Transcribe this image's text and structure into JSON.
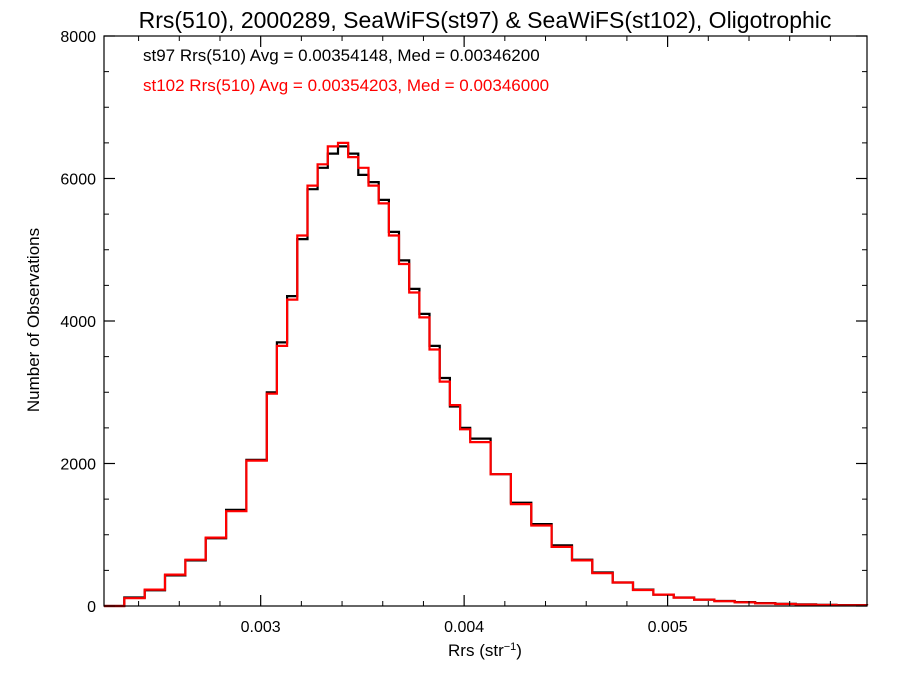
{
  "chart_data": {
    "type": "line",
    "title": "Rrs(510), 2000289, SeaWiFS(st97) & SeaWiFS(st102), Oligotrophic",
    "xlabel": "Rrs (str",
    "xlabel_sup": "−1",
    "xlabel_end": ")",
    "ylabel": "Number of Observations",
    "xlim": [
      0.00223,
      0.00598
    ],
    "ylim": [
      0,
      8000
    ],
    "x_ticks": [
      {
        "value": 0.003,
        "label": "0.003"
      },
      {
        "value": 0.004,
        "label": "0.004"
      },
      {
        "value": 0.005,
        "label": "0.005"
      }
    ],
    "y_ticks": [
      {
        "value": 0,
        "label": "0"
      },
      {
        "value": 2000,
        "label": "2000"
      },
      {
        "value": 4000,
        "label": "4000"
      },
      {
        "value": 6000,
        "label": "6000"
      },
      {
        "value": 8000,
        "label": "8000"
      }
    ],
    "annotations": [
      {
        "text": "st97 Rrs(510) Avg = 0.00354148, Med = 0.00346200",
        "color": "#000000"
      },
      {
        "text": "st102 Rrs(510) Avg = 0.00354203, Med = 0.00346000",
        "color": "#ff0000"
      }
    ],
    "x": [
      0.00223,
      0.00233,
      0.00243,
      0.00253,
      0.00263,
      0.00273,
      0.00283,
      0.00293,
      0.00303,
      0.00308,
      0.00313,
      0.00318,
      0.00323,
      0.00328,
      0.00333,
      0.00338,
      0.00343,
      0.00348,
      0.00353,
      0.00358,
      0.00363,
      0.00368,
      0.00373,
      0.00378,
      0.00383,
      0.00388,
      0.00393,
      0.00398,
      0.00403,
      0.00413,
      0.00423,
      0.00433,
      0.00443,
      0.00453,
      0.00463,
      0.00473,
      0.00483,
      0.00493,
      0.00503,
      0.00513,
      0.00523,
      0.00533,
      0.00543,
      0.00553,
      0.00563,
      0.00573,
      0.00583,
      0.00598
    ],
    "series": [
      {
        "name": "st97",
        "color": "#000000",
        "values": [
          0,
          120,
          220,
          430,
          640,
          950,
          1350,
          2050,
          3000,
          3700,
          4350,
          5150,
          5850,
          6150,
          6350,
          6450,
          6350,
          6050,
          5950,
          5700,
          5250,
          4850,
          4450,
          4100,
          3650,
          3200,
          2800,
          2500,
          2350,
          1850,
          1450,
          1150,
          850,
          650,
          470,
          330,
          230,
          160,
          120,
          90,
          70,
          55,
          40,
          30,
          22,
          15,
          12,
          10
        ]
      },
      {
        "name": "st102",
        "color": "#ff0000",
        "values": [
          0,
          110,
          230,
          440,
          650,
          960,
          1330,
          2040,
          2980,
          3650,
          4300,
          5200,
          5900,
          6200,
          6450,
          6500,
          6300,
          6150,
          5900,
          5650,
          5200,
          4800,
          4400,
          4050,
          3600,
          3150,
          2820,
          2480,
          2300,
          1850,
          1430,
          1130,
          830,
          640,
          460,
          330,
          225,
          160,
          118,
          88,
          68,
          52,
          38,
          28,
          20,
          14,
          10,
          8
        ]
      }
    ]
  }
}
